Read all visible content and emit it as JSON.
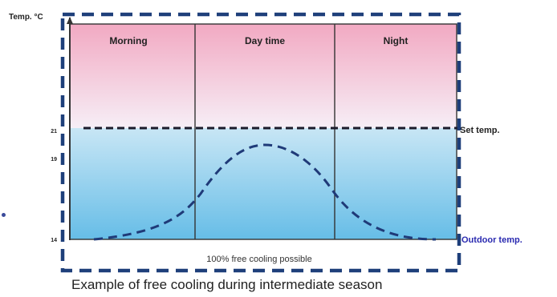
{
  "diagram": {
    "y_axis_label": "Temp. °C",
    "periods": [
      "Morning",
      "Day time",
      "Night"
    ],
    "y_ticks": [
      "21",
      "19",
      "14"
    ],
    "set_temp_label": "Set temp.",
    "outdoor_temp_label": "Outdoor temp.",
    "free_cooling_label": "100% free cooling possible",
    "caption": "Example of free cooling during intermediate season",
    "colors": {
      "warm_zone_top": "#f2a9c2",
      "warm_zone_bottom": "#f5eef5",
      "cool_zone_top": "#c3e4f4",
      "cool_zone_bottom": "#6cc0e8",
      "dashed_frame": "#1e3f7a",
      "set_temp_line": "#1b1b2b",
      "outdoor_curve": "#1f3a78",
      "outdoor_label": "#2a2ab0"
    }
  }
}
